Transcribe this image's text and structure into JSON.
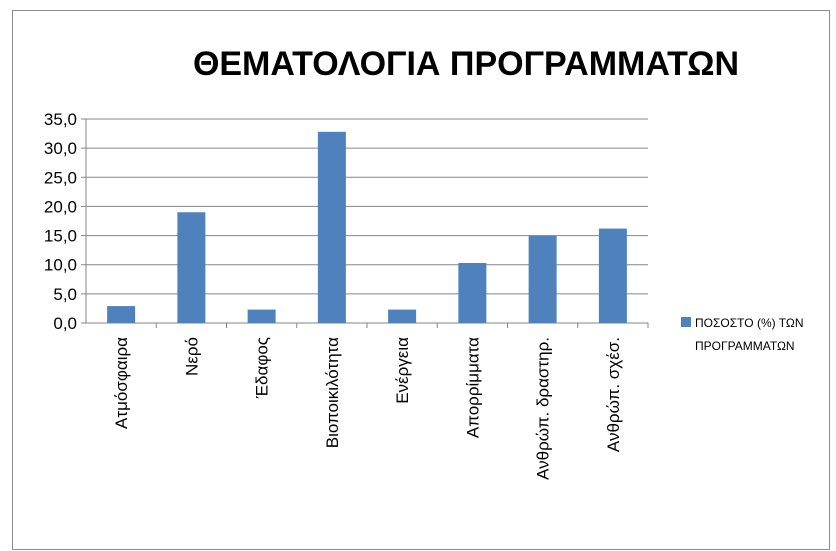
{
  "chart_data": {
    "type": "bar",
    "title": "ΘΕΜΑΤΟΛΟΓΙΑ ΠΡΟΓΡΑΜΜΑΤΩΝ",
    "categories": [
      "Ατμόσφαιρα",
      "Νερό",
      "Έδαφος",
      "Βιοποικιλότητα",
      "Ενέργεια",
      "Απορρίμματα",
      "Ανθρώπ. δραστηρ.",
      "Ανθρώπ. σχέσ."
    ],
    "series": [
      {
        "name": "ΠΟΣΟΣΤΟ (%) ΤΩΝ ΠΡΟΓΡΑΜΜΑΤΩΝ",
        "legend_lines": [
          "ΠΟΣΟΣΤΟ (%) ΤΩΝ",
          "ΠΡΟΓΡΑΜΜΑΤΩΝ"
        ],
        "values": [
          2.9,
          19.0,
          2.3,
          32.8,
          2.3,
          10.3,
          15.0,
          16.2
        ],
        "color": "#4f81bd"
      }
    ],
    "ylim": [
      0,
      35
    ],
    "yticks": [
      "0,0",
      "5,0",
      "10,0",
      "15,0",
      "20,0",
      "25,0",
      "30,0",
      "35,0"
    ],
    "ystep": 5,
    "grid": true,
    "legend_position": "right",
    "xlabel": "",
    "ylabel": ""
  }
}
